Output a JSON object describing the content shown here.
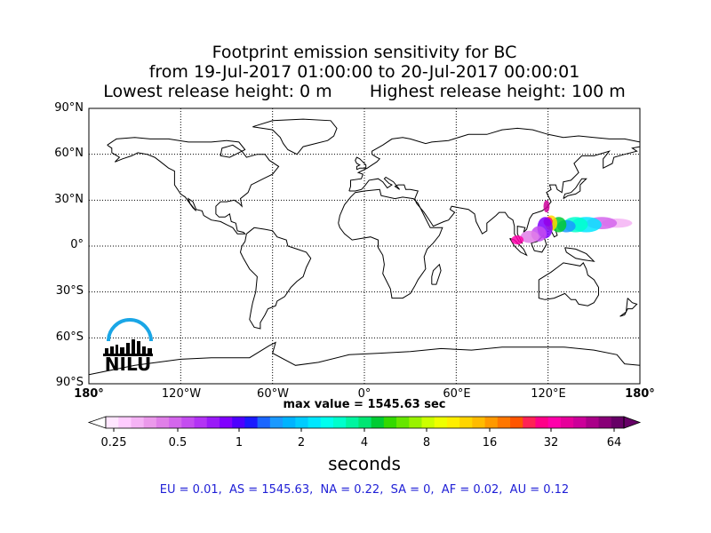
{
  "title": {
    "line1": "Footprint emission sensitivity for BC",
    "line2": "from 19-Jul-2017 01:00:00 to 20-Jul-2017 00:00:01",
    "line3": "Lowest release height: 0 m       Highest release height: 100 m"
  },
  "map": {
    "projection": "equirectangular",
    "lon_range": [
      -180,
      180
    ],
    "lat_range": [
      -90,
      90
    ],
    "lat_labels": [
      "90°N",
      "60°N",
      "30°N",
      "0°",
      "30°S",
      "60°S",
      "90°S"
    ],
    "lon_labels": [
      "180°",
      "120°W",
      "60°W",
      "0°",
      "60°E",
      "120°E",
      "180°"
    ],
    "gridlines": true,
    "plume_region": "Western Pacific / South China Sea",
    "logo_text": "NILU"
  },
  "max_value_text": "max value = 1545.63 sec",
  "colorbar": {
    "tick_labels": [
      "0.25",
      "0.5",
      "1",
      "2",
      "4",
      "8",
      "16",
      "32",
      "64"
    ],
    "unit": "seconds",
    "colors": [
      "#ffe6ff",
      "#ffccff",
      "#f5b3f5",
      "#eb99eb",
      "#e07fe8",
      "#d466ec",
      "#c44cf0",
      "#b333f5",
      "#9a1af8",
      "#8000ff",
      "#4d00ff",
      "#1a1aff",
      "#1a66ff",
      "#1a99ff",
      "#00b3ff",
      "#00ccff",
      "#00e6ff",
      "#00ffee",
      "#00ffcc",
      "#00f5a0",
      "#00e673",
      "#00cc33",
      "#33d900",
      "#66e600",
      "#99f200",
      "#ccff00",
      "#eeff00",
      "#ffee00",
      "#ffd500",
      "#ffbb00",
      "#ff9900",
      "#ff7700",
      "#ff5500",
      "#ff2255",
      "#ff0088",
      "#ff00aa",
      "#e6009a",
      "#cc0099",
      "#aa0088",
      "#880077",
      "#660066"
    ],
    "extend_min_color": "#ffffff",
    "extend_max_color": "#660066"
  },
  "region_sums": "EU = 0.01,  AS = 1545.63,  NA = 0.22,  SA = 0,  AF = 0.02,  AU = 0.12",
  "colors": {
    "grid": "#000000",
    "region_text": "#1f1fd6",
    "logo_blue": "#1aa6e6"
  }
}
